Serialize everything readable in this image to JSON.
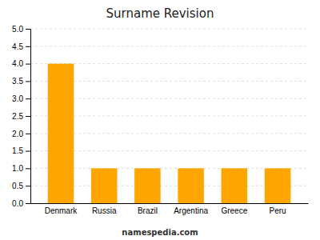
{
  "chart_data": {
    "type": "bar",
    "title": "Surname Revision",
    "categories": [
      "Denmark",
      "Russia",
      "Brazil",
      "Argentina",
      "Greece",
      "Peru"
    ],
    "values": [
      4,
      1,
      1,
      1,
      1,
      1
    ],
    "color": "#FFA500",
    "ylim": [
      0,
      5
    ],
    "yticks": [
      {
        "value": 0,
        "label": "0.0"
      },
      0.5,
      {
        "value": 1,
        "label": "1.0"
      },
      1.5,
      {
        "value": 2,
        "label": "2.0"
      },
      2.5,
      {
        "value": 3,
        "label": "3.0"
      },
      3.5,
      {
        "value": 4,
        "label": "4.0"
      },
      4.5,
      {
        "value": 5,
        "label": "5.0"
      }
    ],
    "grid": true,
    "annotations": [
      "namespedia.com"
    ]
  }
}
